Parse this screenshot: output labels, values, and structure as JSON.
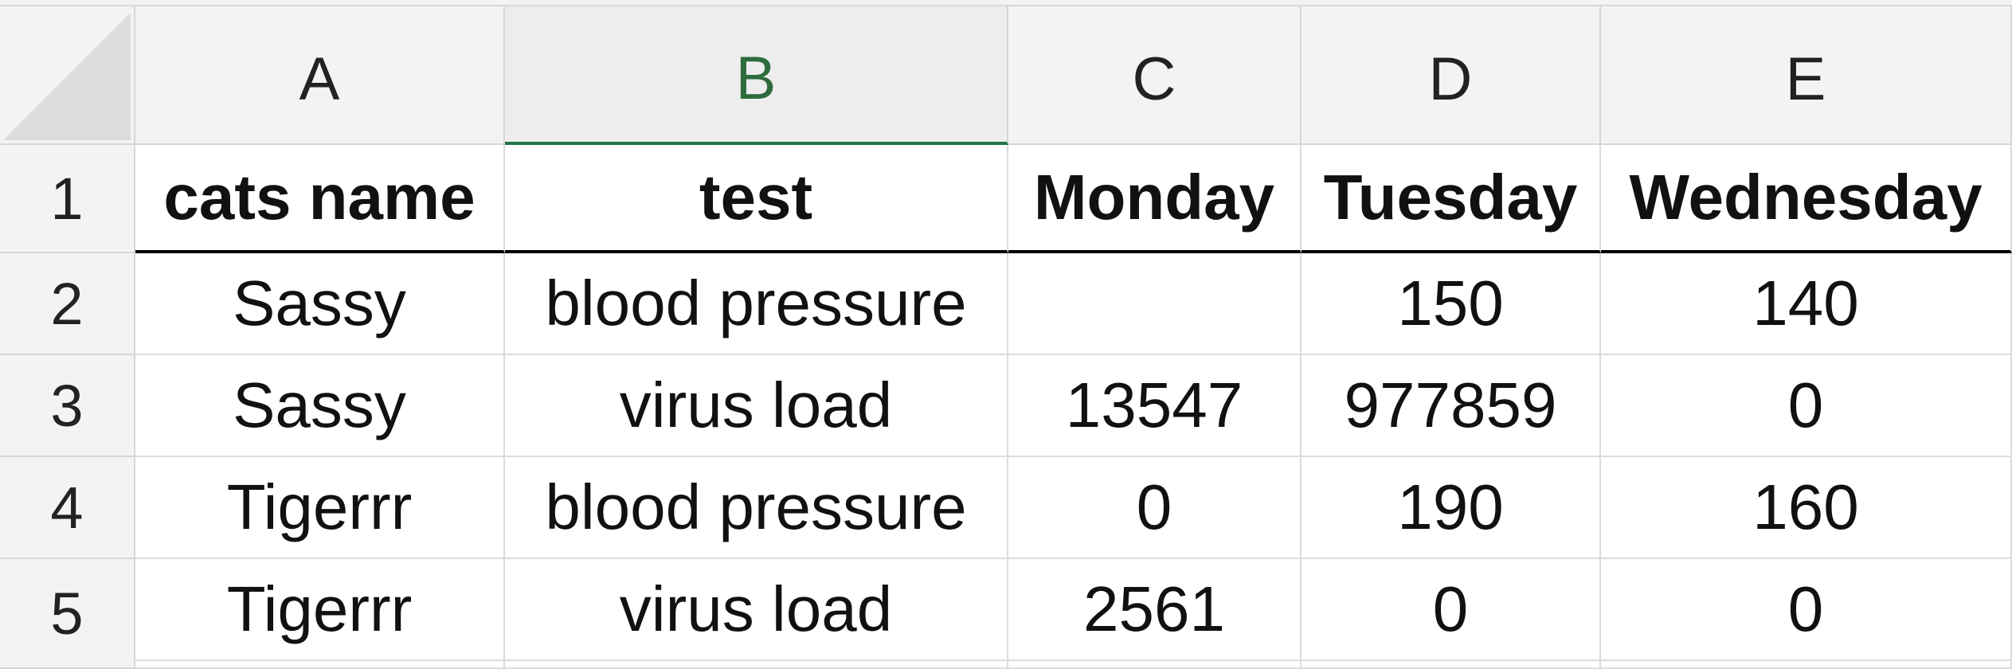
{
  "columns": [
    "A",
    "B",
    "C",
    "D",
    "E"
  ],
  "rows": [
    "1",
    "2",
    "3",
    "4",
    "5"
  ],
  "table": {
    "header": [
      "cats name",
      "test",
      "Monday",
      "Tuesday",
      "Wednesday"
    ],
    "rows": [
      [
        "Sassy",
        "blood pressure",
        "",
        "150",
        "140"
      ],
      [
        "Sassy",
        "virus load",
        "13547",
        "977859",
        "0"
      ],
      [
        "Tigerrr",
        "blood pressure",
        "0",
        "190",
        "160"
      ],
      [
        "Tigerrr",
        "virus load",
        "2561",
        "0",
        "0"
      ]
    ]
  },
  "selected_column": "B",
  "colors": {
    "selected_header_text": "#2e6b3d",
    "selected_header_underline": "#217346"
  }
}
